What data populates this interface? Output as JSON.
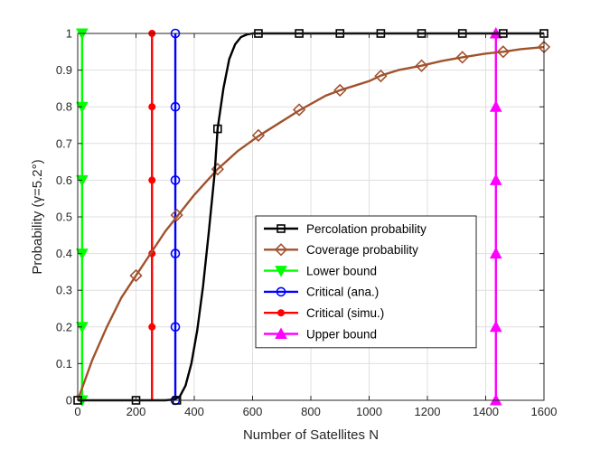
{
  "chart_data": {
    "type": "line",
    "xlabel": "Number of Satellites N",
    "ylabel": "Probability (γ=5.2°)",
    "xlim": [
      0,
      1600
    ],
    "ylim": [
      0,
      1
    ],
    "xticks": [
      "0",
      "200",
      "400",
      "600",
      "800",
      "1000",
      "1200",
      "1400",
      "1600"
    ],
    "yticks": [
      "0",
      "0.1",
      "0.2",
      "0.3",
      "0.4",
      "0.5",
      "0.6",
      "0.7",
      "0.8",
      "0.9",
      "1"
    ],
    "grid": true,
    "legend_position": "center-right",
    "series": [
      {
        "name": "Percolation probability",
        "color": "#000000",
        "marker": "square",
        "curve": [
          [
            0,
            0
          ],
          [
            200,
            0
          ],
          [
            300,
            0
          ],
          [
            330,
            0.002
          ],
          [
            350,
            0.01
          ],
          [
            370,
            0.04
          ],
          [
            390,
            0.1
          ],
          [
            410,
            0.19
          ],
          [
            430,
            0.31
          ],
          [
            450,
            0.46
          ],
          [
            470,
            0.62
          ],
          [
            480,
            0.74
          ],
          [
            500,
            0.85
          ],
          [
            520,
            0.93
          ],
          [
            540,
            0.97
          ],
          [
            560,
            0.99
          ],
          [
            580,
            0.997
          ],
          [
            600,
            1
          ],
          [
            620,
            1
          ],
          [
            1600,
            1
          ]
        ],
        "markers": [
          [
            0,
            0
          ],
          [
            200,
            0
          ],
          [
            340,
            0
          ],
          [
            480,
            0.74
          ],
          [
            620,
            1
          ],
          [
            760,
            1
          ],
          [
            900,
            1
          ],
          [
            1040,
            1
          ],
          [
            1180,
            1
          ],
          [
            1320,
            1
          ],
          [
            1460,
            1
          ],
          [
            1600,
            1
          ]
        ]
      },
      {
        "name": "Coverage probability",
        "color": "#A0522D",
        "marker": "diamond",
        "curve": [
          [
            0,
            0
          ],
          [
            50,
            0.11
          ],
          [
            100,
            0.2
          ],
          [
            150,
            0.28
          ],
          [
            200,
            0.34
          ],
          [
            250,
            0.4
          ],
          [
            300,
            0.46
          ],
          [
            340,
            0.5
          ],
          [
            400,
            0.56
          ],
          [
            480,
            0.63
          ],
          [
            550,
            0.68
          ],
          [
            620,
            0.72
          ],
          [
            700,
            0.76
          ],
          [
            760,
            0.79
          ],
          [
            850,
            0.83
          ],
          [
            900,
            0.845
          ],
          [
            1000,
            0.87
          ],
          [
            1040,
            0.885
          ],
          [
            1100,
            0.9
          ],
          [
            1180,
            0.912
          ],
          [
            1250,
            0.925
          ],
          [
            1320,
            0.935
          ],
          [
            1400,
            0.945
          ],
          [
            1460,
            0.95
          ],
          [
            1520,
            0.957
          ],
          [
            1600,
            0.963
          ]
        ],
        "markers": [
          [
            200,
            0.34
          ],
          [
            340,
            0.505
          ],
          [
            480,
            0.63
          ],
          [
            620,
            0.722
          ],
          [
            760,
            0.792
          ],
          [
            900,
            0.845
          ],
          [
            1040,
            0.884
          ],
          [
            1180,
            0.912
          ],
          [
            1320,
            0.935
          ],
          [
            1460,
            0.95
          ],
          [
            1600,
            0.963
          ]
        ]
      },
      {
        "name": "Lower bound",
        "color": "#00FF00",
        "marker": "triangle-down",
        "x": 15,
        "markers_y": [
          0,
          0.2,
          0.4,
          0.6,
          0.8,
          1
        ]
      },
      {
        "name": "Critical (ana.)",
        "color": "#0000FF",
        "marker": "circle",
        "x": 335,
        "markers_y": [
          0,
          0.2,
          0.4,
          0.6,
          0.8,
          1
        ]
      },
      {
        "name": "Critical (simu.)",
        "color": "#FF0000",
        "marker": "dot",
        "x": 255,
        "markers_y": [
          0.2,
          0.4,
          0.6,
          0.8,
          1
        ]
      },
      {
        "name": "Upper bound",
        "color": "#FF00FF",
        "marker": "triangle-up",
        "x": 1435,
        "markers_y": [
          0,
          0.2,
          0.4,
          0.6,
          0.8,
          1
        ]
      }
    ]
  }
}
